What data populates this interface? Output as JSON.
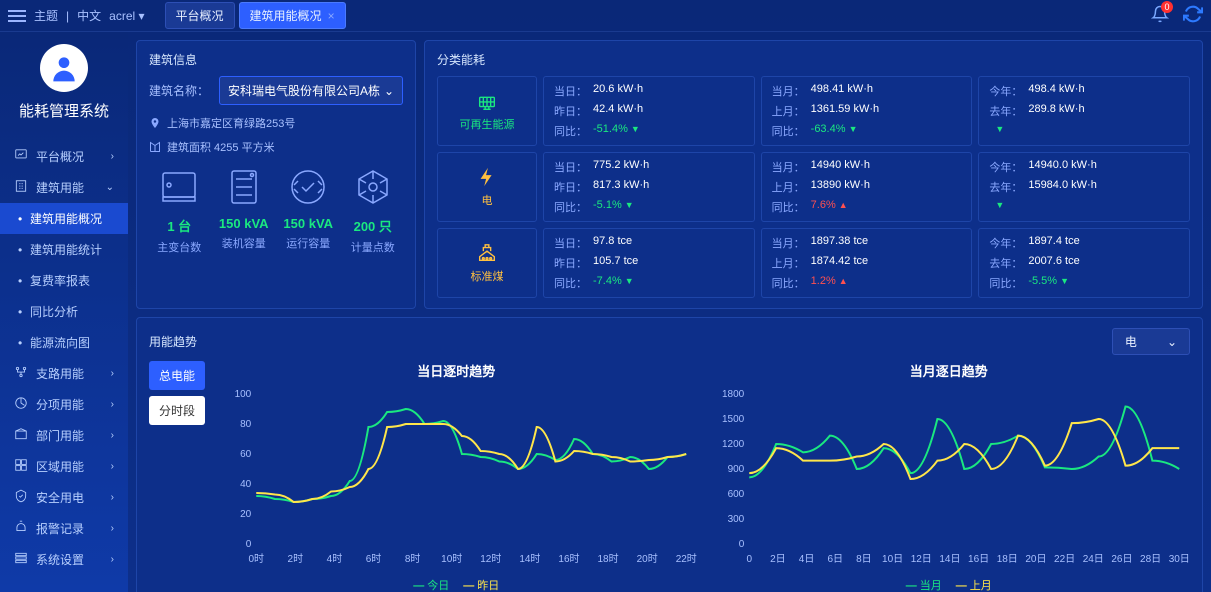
{
  "topbar": {
    "theme": "主题",
    "lang": "中文",
    "user": "acrel",
    "tabs": [
      {
        "label": "平台概况",
        "closable": false
      },
      {
        "label": "建筑用能概况",
        "closable": true,
        "active": true
      }
    ],
    "notif_count": "0"
  },
  "sidebar": {
    "system_title": "能耗管理系统",
    "nav": [
      {
        "icon": "overview",
        "label": "平台概况"
      },
      {
        "icon": "building",
        "label": "建筑用能",
        "expanded": true,
        "children": [
          {
            "label": "建筑用能概况",
            "active": true
          },
          {
            "label": "建筑用能统计"
          },
          {
            "label": "复费率报表"
          },
          {
            "label": "同比分析"
          },
          {
            "label": "能源流向图"
          }
        ]
      },
      {
        "icon": "branch",
        "label": "支路用能"
      },
      {
        "icon": "category",
        "label": "分项用能"
      },
      {
        "icon": "dept",
        "label": "部门用能"
      },
      {
        "icon": "area",
        "label": "区域用能"
      },
      {
        "icon": "safe",
        "label": "安全用电"
      },
      {
        "icon": "alarm",
        "label": "报警记录"
      },
      {
        "icon": "settings",
        "label": "系统设置"
      }
    ]
  },
  "building_info": {
    "title": "建筑信息",
    "name_label": "建筑名称：",
    "name_value": "安科瑞电气股份有限公司A栋",
    "address": "上海市嘉定区育绿路253号",
    "area": "建筑面积 4255 平方米",
    "stats": [
      {
        "icon": "server",
        "value": "1 台",
        "label": "主变台数"
      },
      {
        "icon": "rack",
        "value": "150 kVA",
        "label": "装机容量"
      },
      {
        "icon": "capacity",
        "value": "150 kVA",
        "label": "运行容量"
      },
      {
        "icon": "hex",
        "value": "200 只",
        "label": "计量点数"
      }
    ]
  },
  "energy": {
    "title": "分类能耗",
    "rows": [
      {
        "category": {
          "label": "可再生能源",
          "color": "green",
          "icon": "solar"
        },
        "cells": [
          {
            "k1": "当日：",
            "v1": "20.6 kW·h",
            "k2": "昨日：",
            "v2": "42.4 kW·h",
            "rk": "同比：",
            "rv": "-51.4%",
            "dir": "down"
          },
          {
            "k1": "当月：",
            "v1": "498.41 kW·h",
            "k2": "上月：",
            "v2": "1361.59 kW·h",
            "rk": "同比：",
            "rv": "-63.4%",
            "dir": "down"
          },
          {
            "k1": "今年：",
            "v1": "498.4 kW·h",
            "k2": "去年：",
            "v2": "289.8 kW·h",
            "rk": "",
            "rv": "",
            "dir": "down"
          }
        ]
      },
      {
        "category": {
          "label": "电",
          "color": "yellow",
          "icon": "bolt"
        },
        "cells": [
          {
            "k1": "当日：",
            "v1": "775.2 kW·h",
            "k2": "昨日：",
            "v2": "817.3 kW·h",
            "rk": "同比：",
            "rv": "-5.1%",
            "dir": "down"
          },
          {
            "k1": "当月：",
            "v1": "14940 kW·h",
            "k2": "上月：",
            "v2": "13890 kW·h",
            "rk": "同比：",
            "rv": "7.6%",
            "dir": "up"
          },
          {
            "k1": "今年：",
            "v1": "14940.0 kW·h",
            "k2": "去年：",
            "v2": "15984.0 kW·h",
            "rk": "",
            "rv": "",
            "dir": "down"
          }
        ]
      },
      {
        "category": {
          "label": "标准煤",
          "color": "yellow",
          "icon": "coal"
        },
        "cells": [
          {
            "k1": "当日：",
            "v1": "97.8 tce",
            "k2": "昨日：",
            "v2": "105.7 tce",
            "rk": "同比：",
            "rv": "-7.4%",
            "dir": "down"
          },
          {
            "k1": "当月：",
            "v1": "1897.38 tce",
            "k2": "上月：",
            "v2": "1874.42 tce",
            "rk": "同比：",
            "rv": "1.2%",
            "dir": "up"
          },
          {
            "k1": "今年：",
            "v1": "1897.4 tce",
            "k2": "去年：",
            "v2": "2007.6 tce",
            "rk": "同比：",
            "rv": "-5.5%",
            "dir": "down"
          }
        ]
      }
    ]
  },
  "trend": {
    "title": "用能趋势",
    "dropdown": "电",
    "switches": [
      {
        "label": "总电能",
        "on": true
      },
      {
        "label": "分时段",
        "on": false
      }
    ],
    "chart1": {
      "title": "当日逐时趋势",
      "ylim": [
        0,
        100
      ],
      "ytick_step": 20,
      "xlabels": [
        "0时",
        "2时",
        "4时",
        "6时",
        "8时",
        "10时",
        "12时",
        "14时",
        "16时",
        "18时",
        "20时",
        "22时"
      ],
      "series": [
        {
          "name": "今日",
          "color": "#1ae880",
          "values": [
            32,
            30,
            28,
            30,
            32,
            42,
            78,
            88,
            90,
            80,
            82,
            60,
            58,
            55,
            50,
            60,
            56,
            70,
            60,
            55,
            58,
            50,
            58,
            60
          ]
        },
        {
          "name": "昨日",
          "color": "#ffe64a",
          "values": [
            34,
            33,
            28,
            30,
            35,
            38,
            50,
            78,
            80,
            80,
            80,
            72,
            62,
            60,
            50,
            78,
            55,
            62,
            60,
            58,
            55,
            56,
            58,
            60
          ]
        }
      ],
      "background_color": "#0d2f8a",
      "grid_color": "#1e45a8",
      "line_width": 2
    },
    "chart2": {
      "title": "当月逐日趋势",
      "ylim": [
        0,
        1800
      ],
      "ytick_step": 300,
      "xlabels": [
        "0",
        "2日",
        "4日",
        "6日",
        "8日",
        "10日",
        "12日",
        "14日",
        "16日",
        "18日",
        "20日",
        "22日",
        "24日",
        "26日",
        "28日",
        "30日"
      ],
      "series": [
        {
          "name": "当月",
          "color": "#1ae880",
          "values": [
            800,
            1200,
            1100,
            1300,
            900,
            1150,
            850,
            1500,
            900,
            1200,
            1300,
            920,
            900,
            1050,
            1650,
            1000,
            900
          ]
        },
        {
          "name": "上月",
          "color": "#ffe64a",
          "values": [
            850,
            1150,
            1000,
            1000,
            1050,
            1200,
            780,
            1000,
            1200,
            900,
            1300,
            940,
            1450,
            1500,
            940,
            1150,
            1150
          ]
        }
      ],
      "background_color": "#0d2f8a",
      "grid_color": "#1e45a8",
      "line_width": 2
    }
  }
}
